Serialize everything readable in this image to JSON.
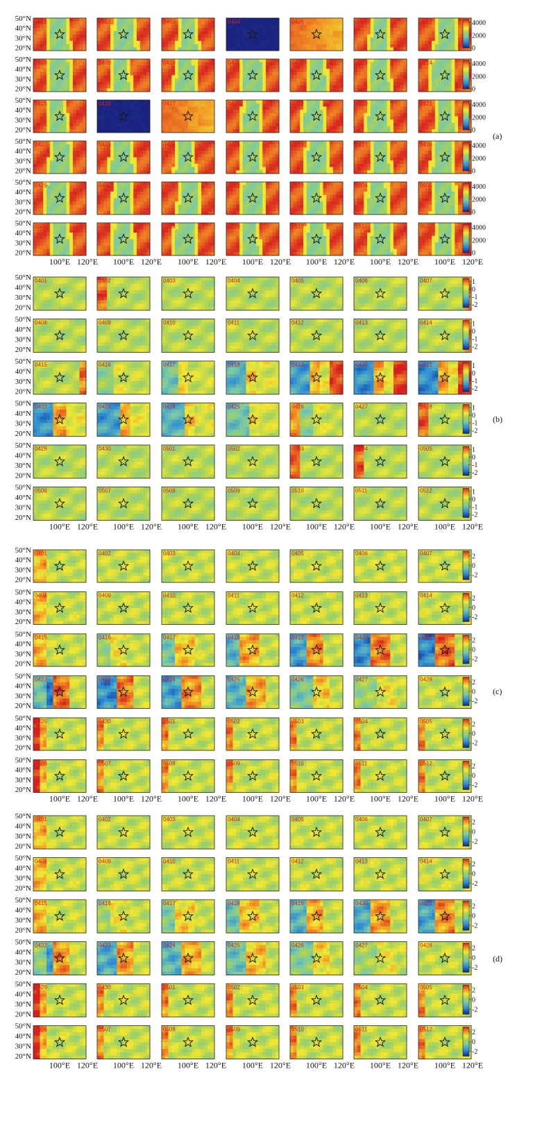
{
  "figure": {
    "lat_labels": [
      "50°N",
      "40°N",
      "30°N",
      "20°N"
    ],
    "lon_labels": [
      "100°E",
      "120°E"
    ],
    "chart_data": [
      {
        "type": "heatmap",
        "panel": "(a)",
        "colorbar_ticks": [
          "4000",
          "2000",
          "0"
        ],
        "value_range": [
          0,
          4500
        ],
        "dates": [
          "0401",
          "0402",
          "0403",
          "0404",
          "0405",
          "0406",
          "0407",
          "0408",
          "0409",
          "0410",
          "0411",
          "0412",
          "0413",
          "0414",
          "0415",
          "0416",
          "0417",
          "0418",
          "0419",
          "0420",
          "0421",
          "0422",
          "0423",
          "0424",
          "0425",
          "0426",
          "0427",
          "0428",
          "0429",
          "0430",
          "0501",
          "0502",
          "0503",
          "0504",
          "0505",
          "0506",
          "0507",
          "0508",
          "0509",
          "0510",
          "0511",
          "0512"
        ],
        "xlabel": "",
        "ylabel": ""
      },
      {
        "type": "heatmap",
        "panel": "(b)",
        "colorbar_ticks": [
          "1",
          "0",
          "-1",
          "-2"
        ],
        "value_range": [
          -2.4,
          1.4
        ],
        "dates": [
          "0401",
          "0402",
          "0403",
          "0404",
          "0405",
          "0406",
          "0407",
          "0408",
          "0409",
          "0410",
          "0411",
          "0412",
          "0413",
          "0414",
          "0415",
          "0416",
          "0417",
          "0418",
          "0419",
          "0420",
          "0421",
          "0422",
          "0423",
          "0424",
          "0425",
          "0426",
          "0427",
          "0428",
          "0429",
          "0430",
          "0501",
          "0502",
          "0503",
          "0504",
          "0505",
          "0506",
          "0507",
          "0508",
          "0509",
          "0510",
          "0511",
          "0512"
        ],
        "xlabel": "",
        "ylabel": ""
      },
      {
        "type": "heatmap",
        "panel": "(c)",
        "colorbar_ticks": [
          "2",
          "0",
          "-2"
        ],
        "value_range": [
          -3,
          3
        ],
        "dates": [
          "0401",
          "0402",
          "0403",
          "0404",
          "0405",
          "0406",
          "0407",
          "0408",
          "0409",
          "0410",
          "0411",
          "0412",
          "0413",
          "0414",
          "0415",
          "0416",
          "0417",
          "0418",
          "0419",
          "0420",
          "0421",
          "0422",
          "0423",
          "0424",
          "0425",
          "0426",
          "0427",
          "0428",
          "0429",
          "0430",
          "0501",
          "0502",
          "0503",
          "0504",
          "0505",
          "0506",
          "0507",
          "0508",
          "0509",
          "0510",
          "0511",
          "0512"
        ],
        "xlabel": "",
        "ylabel": ""
      },
      {
        "type": "heatmap",
        "panel": "(d)",
        "colorbar_ticks": [
          "2",
          "0",
          "-2"
        ],
        "value_range": [
          -3,
          3
        ],
        "dates": [
          "0401",
          "0402",
          "0403",
          "0404",
          "0405",
          "0406",
          "0407",
          "0408",
          "0409",
          "0410",
          "0411",
          "0412",
          "0413",
          "0414",
          "0415",
          "0416",
          "0417",
          "0418",
          "0419",
          "0420",
          "0421",
          "0422",
          "0423",
          "0424",
          "0425",
          "0426",
          "0427",
          "0428",
          "0429",
          "0430",
          "0501",
          "0502",
          "0503",
          "0504",
          "0505",
          "0506",
          "0507",
          "0508",
          "0509",
          "0510",
          "0511",
          "0512"
        ],
        "xlabel": "",
        "ylabel": ""
      }
    ]
  }
}
